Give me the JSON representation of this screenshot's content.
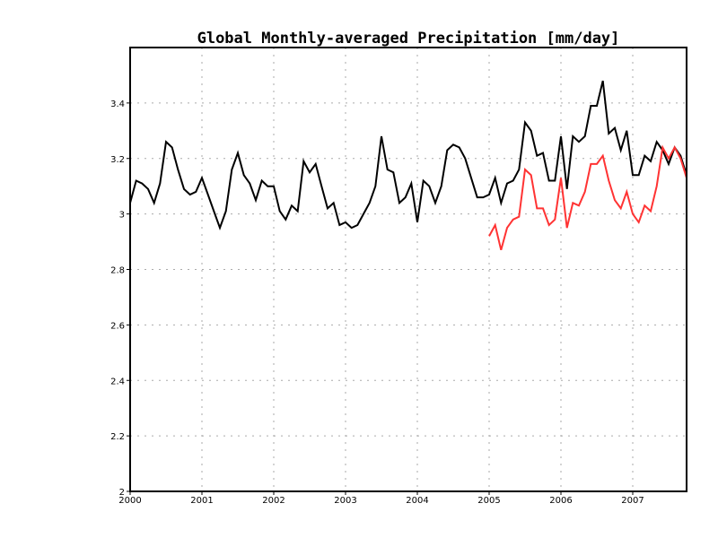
{
  "chart_data": {
    "type": "line",
    "title": "Global Monthly-averaged Precipitation [mm/day]",
    "xlabel": "",
    "ylabel": "",
    "x_start": "2000-01",
    "x_step": "month",
    "xlim": [
      "2000-01",
      "2007-10"
    ],
    "ylim": [
      2,
      3.6
    ],
    "x_ticks": [
      "2000",
      "2001",
      "2002",
      "2003",
      "2004",
      "2005",
      "2006",
      "2007"
    ],
    "y_ticks": [
      "2",
      "2.2",
      "2.4",
      "2.6",
      "2.8",
      "3",
      "3.2",
      "3.4"
    ],
    "y_tick_values": [
      2,
      2.2,
      2.4,
      2.6,
      2.8,
      3,
      3.2,
      3.4
    ],
    "grid": true,
    "series": [
      {
        "color": "#000000",
        "start": "2000-01",
        "values": [
          3.04,
          3.12,
          3.11,
          3.09,
          3.04,
          3.11,
          3.26,
          3.24,
          3.16,
          3.09,
          3.07,
          3.08,
          3.13,
          3.07,
          3.01,
          2.95,
          3.01,
          3.16,
          3.22,
          3.14,
          3.11,
          3.05,
          3.12,
          3.1,
          3.1,
          3.01,
          2.98,
          3.03,
          3.01,
          3.19,
          3.15,
          3.18,
          3.1,
          3.02,
          3.04,
          2.96,
          2.97,
          2.95,
          2.96,
          3.0,
          3.04,
          3.1,
          3.28,
          3.16,
          3.15,
          3.04,
          3.06,
          3.11,
          2.97,
          3.12,
          3.1,
          3.04,
          3.1,
          3.23,
          3.25,
          3.24,
          3.2,
          3.13,
          3.06,
          3.06,
          3.07,
          3.13,
          3.04,
          3.11,
          3.12,
          3.16,
          3.33,
          3.3,
          3.21,
          3.22,
          3.12,
          3.12,
          3.28,
          3.09,
          3.28,
          3.26,
          3.28,
          3.39,
          3.39,
          3.48,
          3.29,
          3.31,
          3.23,
          3.3,
          3.14,
          3.14,
          3.21,
          3.19,
          3.26,
          3.23,
          3.18,
          3.24,
          3.21,
          3.14
        ]
      },
      {
        "color": "#ff3333",
        "start": "2005-01",
        "values": [
          2.92,
          2.96,
          2.87,
          2.95,
          2.98,
          2.99,
          3.16,
          3.14,
          3.02,
          3.02,
          2.96,
          2.98,
          3.13,
          2.95,
          3.04,
          3.03,
          3.08,
          3.18,
          3.18,
          3.21,
          3.12,
          3.05,
          3.02,
          3.08,
          3.0,
          2.97,
          3.03,
          3.01,
          3.1,
          3.24,
          3.2,
          3.24,
          3.2,
          3.13
        ]
      }
    ]
  }
}
